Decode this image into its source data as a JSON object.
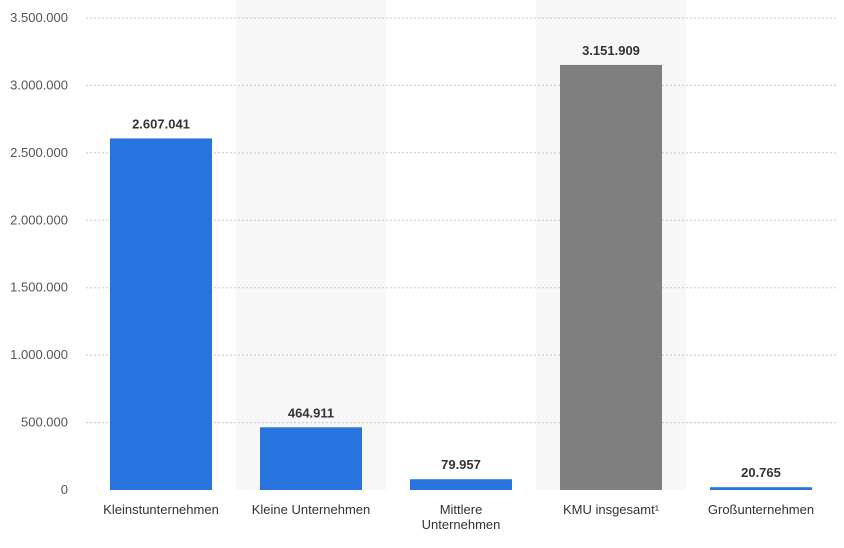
{
  "chart_data": {
    "type": "bar",
    "categories": [
      [
        "Kleinstunternehmen"
      ],
      [
        "Kleine Unternehmen"
      ],
      [
        "Mittlere",
        "Unternehmen"
      ],
      [
        "KMU insgesamt¹"
      ],
      [
        "Großunternehmen"
      ]
    ],
    "values": [
      2607041,
      464911,
      79957,
      3151909,
      20765
    ],
    "value_labels": [
      "2.607.041",
      "464.911",
      "79.957",
      "3.151.909",
      "20.765"
    ],
    "bar_colors": [
      "#2874de",
      "#2874de",
      "#2874de",
      "#7f7f7f",
      "#2874de"
    ],
    "ylim": [
      0,
      3500000
    ],
    "yticks": [
      0,
      500000,
      1000000,
      1500000,
      2000000,
      2500000,
      3000000,
      3500000
    ],
    "ytick_labels": [
      "0",
      "500.000",
      "1.000.000",
      "1.500.000",
      "2.000.000",
      "2.500.000",
      "3.000.000",
      "3.500.000"
    ],
    "shaded_categories": [
      1,
      3
    ],
    "grid": true,
    "title": "",
    "xlabel": "",
    "ylabel": ""
  }
}
